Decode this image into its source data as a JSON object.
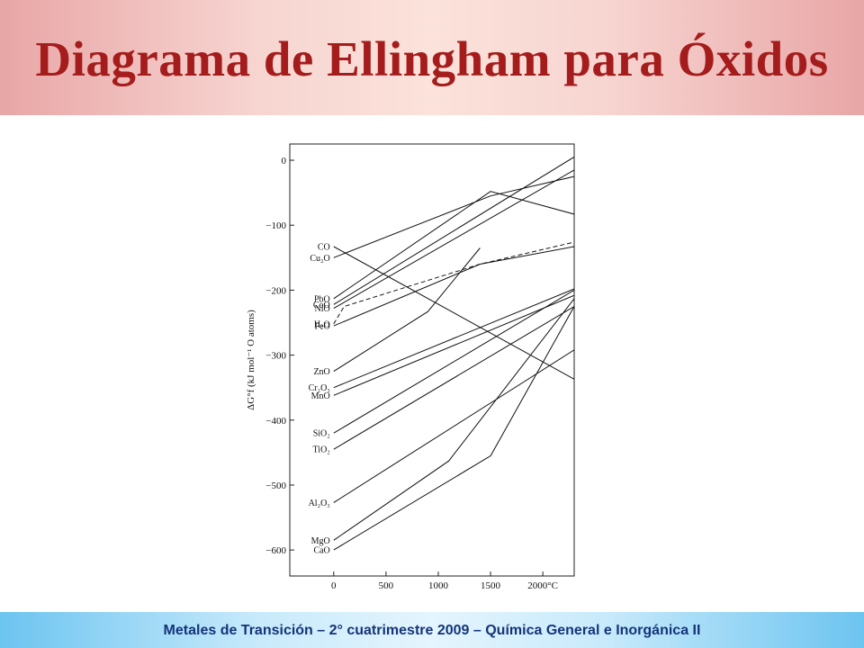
{
  "title": "Diagrama de Ellingham para Óxidos",
  "footer": "Metales de Transición – 2° cuatrimestre 2009 – Química General e Inorgánica II",
  "chart_data": {
    "type": "line",
    "title": "",
    "xlabel": "",
    "ylabel": "ΔG°f (kJ mol⁻¹ O atoms)",
    "xlim": [
      -420,
      2300
    ],
    "ylim": [
      -640,
      25
    ],
    "xticks": [
      0,
      500,
      1000,
      1500,
      2000
    ],
    "xtick_labels": [
      "0",
      "500",
      "1000",
      "1500",
      "2000°C"
    ],
    "yticks": [
      0,
      -100,
      -200,
      -300,
      -400,
      -500,
      -600
    ],
    "ytick_labels": [
      "0",
      "−100",
      "−200",
      "−300",
      "−400",
      "−500",
      "−600"
    ],
    "grid": false,
    "legend": "none",
    "series": [
      {
        "name": "CO",
        "label": "CO",
        "points": [
          [
            0,
            -133
          ],
          [
            2300,
            -337
          ]
        ]
      },
      {
        "name": "Cu₂O",
        "label": "Cu₂O",
        "points": [
          [
            0,
            -150
          ],
          [
            1500,
            -55
          ],
          [
            2300,
            -25
          ]
        ]
      },
      {
        "name": "PbO",
        "label": "PbO",
        "points": [
          [
            0,
            -213
          ],
          [
            1500,
            -48
          ],
          [
            2300,
            -83
          ]
        ]
      },
      {
        "name": "CoO",
        "label": "CoO",
        "points": [
          [
            0,
            -222
          ],
          [
            2300,
            5
          ]
        ]
      },
      {
        "name": "NiO",
        "label": "NiO",
        "points": [
          [
            0,
            -228
          ],
          [
            2300,
            -15
          ]
        ]
      },
      {
        "name": "FeO",
        "label": "FeO",
        "points": [
          [
            0,
            -255
          ],
          [
            1400,
            -160
          ],
          [
            2300,
            -133
          ]
        ]
      },
      {
        "name": "H₂O",
        "label": "H₂O",
        "dashed": true,
        "points": [
          [
            0,
            -252
          ],
          [
            100,
            -225
          ],
          [
            1400,
            -160
          ],
          [
            2300,
            -126
          ]
        ]
      },
      {
        "name": "ZnO",
        "label": "ZnO",
        "points": [
          [
            0,
            -325
          ],
          [
            900,
            -233
          ],
          [
            1400,
            -135
          ]
        ]
      },
      {
        "name": "Cr₂O₃",
        "label": "Cr₂O₃",
        "points": [
          [
            0,
            -350
          ],
          [
            2300,
            -198
          ]
        ]
      },
      {
        "name": "MnO",
        "label": "MnO",
        "points": [
          [
            0,
            -362
          ],
          [
            2300,
            -208
          ]
        ]
      },
      {
        "name": "SiO₂",
        "label": "SiO₂",
        "points": [
          [
            0,
            -420
          ],
          [
            2300,
            -200
          ]
        ]
      },
      {
        "name": "TiO₂",
        "label": "TiO₂",
        "points": [
          [
            0,
            -445
          ],
          [
            2300,
            -225
          ]
        ]
      },
      {
        "name": "Al₂O₃",
        "label": "Al₂O₃",
        "points": [
          [
            0,
            -527
          ],
          [
            2300,
            -292
          ]
        ]
      },
      {
        "name": "MgO",
        "label": "MgO",
        "points": [
          [
            0,
            -585
          ],
          [
            1100,
            -463
          ],
          [
            2300,
            -213
          ]
        ]
      },
      {
        "name": "CaO",
        "label": "CaO",
        "points": [
          [
            0,
            -600
          ],
          [
            1500,
            -455
          ],
          [
            2300,
            -225
          ]
        ]
      }
    ]
  }
}
